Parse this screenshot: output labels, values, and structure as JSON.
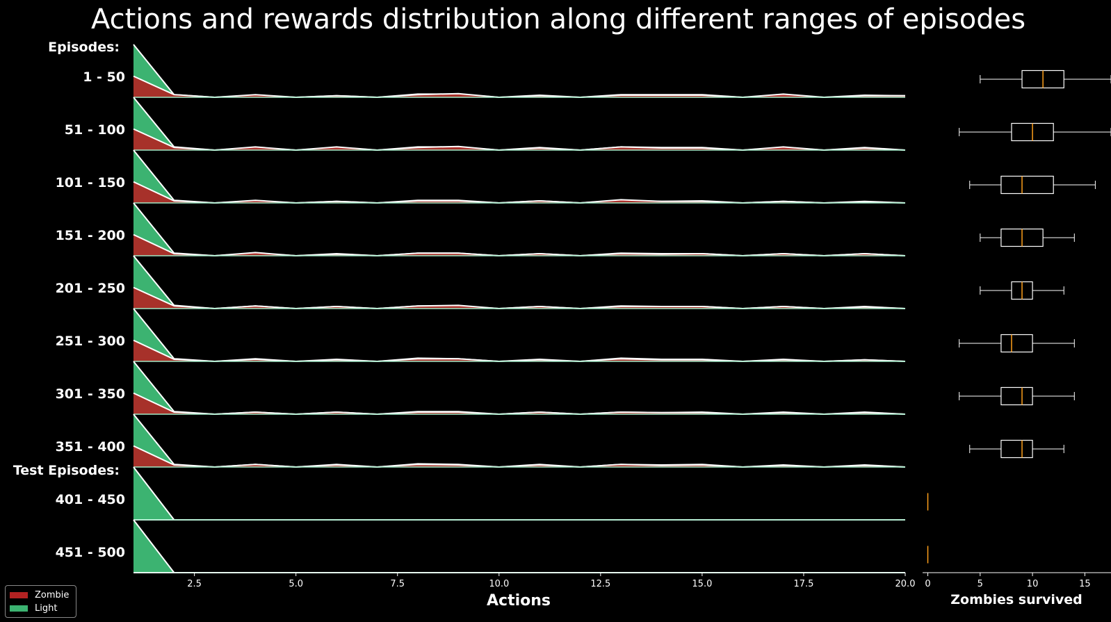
{
  "chart_data": {
    "title": "Actions and rewards distribution along different ranges of episodes",
    "type": "area",
    "xlabel": "Actions",
    "xlim": [
      1,
      20
    ],
    "xticks": [
      "2.5",
      "5.0",
      "7.5",
      "10.0",
      "12.5",
      "15.0",
      "17.5",
      "20.0"
    ],
    "group_labels": [
      "Episodes:",
      "Test Episodes:"
    ],
    "legend": [
      {
        "name": "Zombie",
        "color": "#b22222"
      },
      {
        "name": "Light",
        "color": "#3cb371"
      }
    ],
    "x": [
      1,
      2,
      3,
      4,
      5,
      6,
      7,
      8,
      9,
      10,
      11,
      12,
      13,
      14,
      15,
      16,
      17,
      18,
      19,
      20
    ],
    "rows": [
      {
        "label": "1 - 50",
        "group": 0,
        "light": [
          1.0,
          0.05,
          0.0,
          0.04,
          0.0,
          0.03,
          0.0,
          0.06,
          0.06,
          0.0,
          0.04,
          0.0,
          0.05,
          0.05,
          0.05,
          0.0,
          0.04,
          0.0,
          0.04,
          0.03
        ],
        "zombie": [
          0.4,
          0.05,
          0.0,
          0.05,
          0.0,
          0.03,
          0.0,
          0.05,
          0.07,
          0.0,
          0.03,
          0.0,
          0.04,
          0.04,
          0.04,
          0.0,
          0.06,
          0.0,
          0.03,
          0.03
        ]
      },
      {
        "label": "51 - 100",
        "group": 0,
        "light": [
          1.0,
          0.06,
          0.0,
          0.05,
          0.0,
          0.05,
          0.0,
          0.06,
          0.06,
          0.0,
          0.05,
          0.0,
          0.06,
          0.05,
          0.05,
          0.0,
          0.05,
          0.0,
          0.05,
          0.0
        ],
        "zombie": [
          0.4,
          0.05,
          0.0,
          0.06,
          0.0,
          0.06,
          0.0,
          0.05,
          0.07,
          0.0,
          0.04,
          0.0,
          0.06,
          0.04,
          0.04,
          0.0,
          0.06,
          0.0,
          0.04,
          0.0
        ]
      },
      {
        "label": "101 - 150",
        "group": 0,
        "light": [
          1.0,
          0.05,
          0.0,
          0.04,
          0.0,
          0.03,
          0.0,
          0.05,
          0.05,
          0.0,
          0.04,
          0.0,
          0.05,
          0.03,
          0.04,
          0.0,
          0.03,
          0.0,
          0.03,
          0.0
        ],
        "zombie": [
          0.4,
          0.04,
          0.0,
          0.05,
          0.0,
          0.03,
          0.0,
          0.04,
          0.04,
          0.0,
          0.04,
          0.0,
          0.06,
          0.03,
          0.03,
          0.0,
          0.03,
          0.0,
          0.02,
          0.0
        ]
      },
      {
        "label": "151 - 200",
        "group": 0,
        "light": [
          1.0,
          0.05,
          0.0,
          0.05,
          0.0,
          0.04,
          0.0,
          0.05,
          0.05,
          0.0,
          0.04,
          0.0,
          0.05,
          0.04,
          0.04,
          0.0,
          0.04,
          0.0,
          0.04,
          0.0
        ],
        "zombie": [
          0.4,
          0.04,
          0.0,
          0.06,
          0.0,
          0.03,
          0.0,
          0.05,
          0.05,
          0.0,
          0.04,
          0.0,
          0.04,
          0.03,
          0.04,
          0.0,
          0.04,
          0.0,
          0.04,
          0.0
        ]
      },
      {
        "label": "201 - 250",
        "group": 0,
        "light": [
          1.0,
          0.06,
          0.0,
          0.05,
          0.0,
          0.04,
          0.0,
          0.05,
          0.05,
          0.0,
          0.04,
          0.0,
          0.05,
          0.04,
          0.04,
          0.0,
          0.04,
          0.0,
          0.04,
          0.0
        ],
        "zombie": [
          0.4,
          0.05,
          0.0,
          0.05,
          0.0,
          0.04,
          0.0,
          0.05,
          0.06,
          0.0,
          0.04,
          0.0,
          0.04,
          0.04,
          0.04,
          0.0,
          0.04,
          0.0,
          0.03,
          0.0
        ]
      },
      {
        "label": "251 - 300",
        "group": 0,
        "light": [
          1.0,
          0.05,
          0.0,
          0.05,
          0.0,
          0.04,
          0.0,
          0.06,
          0.05,
          0.0,
          0.04,
          0.0,
          0.06,
          0.04,
          0.04,
          0.0,
          0.04,
          0.0,
          0.03,
          0.0
        ],
        "zombie": [
          0.4,
          0.04,
          0.0,
          0.04,
          0.0,
          0.03,
          0.0,
          0.05,
          0.05,
          0.0,
          0.03,
          0.0,
          0.05,
          0.03,
          0.03,
          0.0,
          0.03,
          0.0,
          0.03,
          0.0
        ]
      },
      {
        "label": "301 - 350",
        "group": 0,
        "light": [
          1.0,
          0.05,
          0.0,
          0.04,
          0.0,
          0.04,
          0.0,
          0.05,
          0.05,
          0.0,
          0.04,
          0.0,
          0.04,
          0.03,
          0.04,
          0.0,
          0.04,
          0.0,
          0.04,
          0.0
        ],
        "zombie": [
          0.4,
          0.04,
          0.0,
          0.04,
          0.0,
          0.04,
          0.0,
          0.04,
          0.04,
          0.0,
          0.04,
          0.0,
          0.04,
          0.03,
          0.03,
          0.0,
          0.03,
          0.0,
          0.03,
          0.0
        ]
      },
      {
        "label": "351 - 400",
        "group": 0,
        "light": [
          1.0,
          0.05,
          0.0,
          0.05,
          0.0,
          0.05,
          0.0,
          0.06,
          0.05,
          0.0,
          0.05,
          0.0,
          0.05,
          0.04,
          0.05,
          0.0,
          0.04,
          0.0,
          0.04,
          0.0
        ],
        "zombie": [
          0.4,
          0.04,
          0.0,
          0.05,
          0.0,
          0.04,
          0.0,
          0.05,
          0.04,
          0.0,
          0.04,
          0.0,
          0.05,
          0.03,
          0.04,
          0.0,
          0.03,
          0.0,
          0.03,
          0.0
        ]
      },
      {
        "label": "401 - 450",
        "group": 1,
        "light": [
          1.0,
          0.0,
          0.0,
          0.0,
          0.0,
          0.0,
          0.0,
          0.0,
          0.0,
          0.0,
          0.0,
          0.0,
          0.0,
          0.0,
          0.0,
          0.0,
          0.0,
          0.0,
          0.0,
          0.0
        ],
        "zombie": [
          0.0,
          0.0,
          0.0,
          0.0,
          0.0,
          0.0,
          0.0,
          0.0,
          0.0,
          0.0,
          0.0,
          0.0,
          0.0,
          0.0,
          0.0,
          0.0,
          0.0,
          0.0,
          0.0,
          0.0
        ]
      },
      {
        "label": "451 - 500",
        "group": 1,
        "light": [
          1.0,
          0.0,
          0.0,
          0.0,
          0.0,
          0.0,
          0.0,
          0.0,
          0.0,
          0.0,
          0.0,
          0.0,
          0.0,
          0.0,
          0.0,
          0.0,
          0.0,
          0.0,
          0.0,
          0.0
        ],
        "zombie": [
          0.0,
          0.0,
          0.0,
          0.0,
          0.0,
          0.0,
          0.0,
          0.0,
          0.0,
          0.0,
          0.0,
          0.0,
          0.0,
          0.0,
          0.0,
          0.0,
          0.0,
          0.0,
          0.0,
          0.0
        ]
      }
    ],
    "boxplot": {
      "type": "boxplot",
      "xlabel": "Zombies survived",
      "xlim": [
        -0.5,
        17.5
      ],
      "xticks": [
        "0",
        "5",
        "10",
        "15"
      ],
      "box_color": "#ffffff",
      "median_color": "#ff9f1a",
      "stats": [
        {
          "whislo": 5,
          "q1": 9,
          "med": 11,
          "q3": 13,
          "whishi": 17.5
        },
        {
          "whislo": 3,
          "q1": 8,
          "med": 10,
          "q3": 12,
          "whishi": 17.5
        },
        {
          "whislo": 4,
          "q1": 7,
          "med": 9,
          "q3": 12,
          "whishi": 16
        },
        {
          "whislo": 5,
          "q1": 7,
          "med": 9,
          "q3": 11,
          "whishi": 14
        },
        {
          "whislo": 5,
          "q1": 8,
          "med": 9,
          "q3": 10,
          "whishi": 13
        },
        {
          "whislo": 3,
          "q1": 7,
          "med": 8,
          "q3": 10,
          "whishi": 14
        },
        {
          "whislo": 3,
          "q1": 7,
          "med": 9,
          "q3": 10,
          "whishi": 14
        },
        {
          "whislo": 4,
          "q1": 7,
          "med": 9,
          "q3": 10,
          "whishi": 13
        },
        {
          "whislo": 0,
          "q1": 0,
          "med": 0,
          "q3": 0,
          "whishi": 0
        },
        {
          "whislo": 0,
          "q1": 0,
          "med": 0,
          "q3": 0,
          "whishi": 0
        }
      ]
    }
  }
}
